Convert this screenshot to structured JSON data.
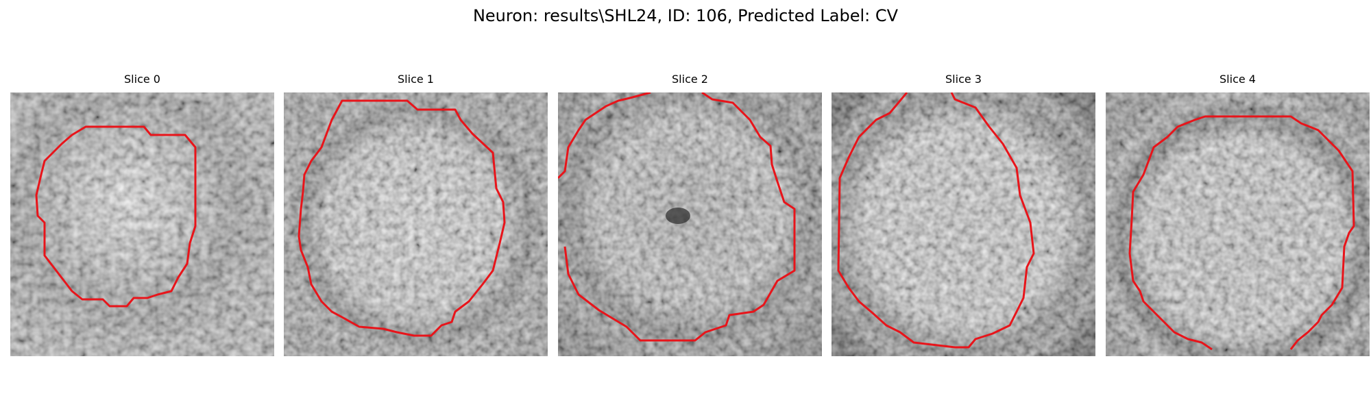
{
  "figure": {
    "title": "Neuron: results\\SHL24, ID: 106, Predicted Label: CV"
  },
  "panels": [
    {
      "title": "Slice 0"
    },
    {
      "title": "Slice 1"
    },
    {
      "title": "Slice 2"
    },
    {
      "title": "Slice 3"
    },
    {
      "title": "Slice 4"
    }
  ],
  "colors": {
    "contour": "#e8141a",
    "background": "#ffffff"
  }
}
